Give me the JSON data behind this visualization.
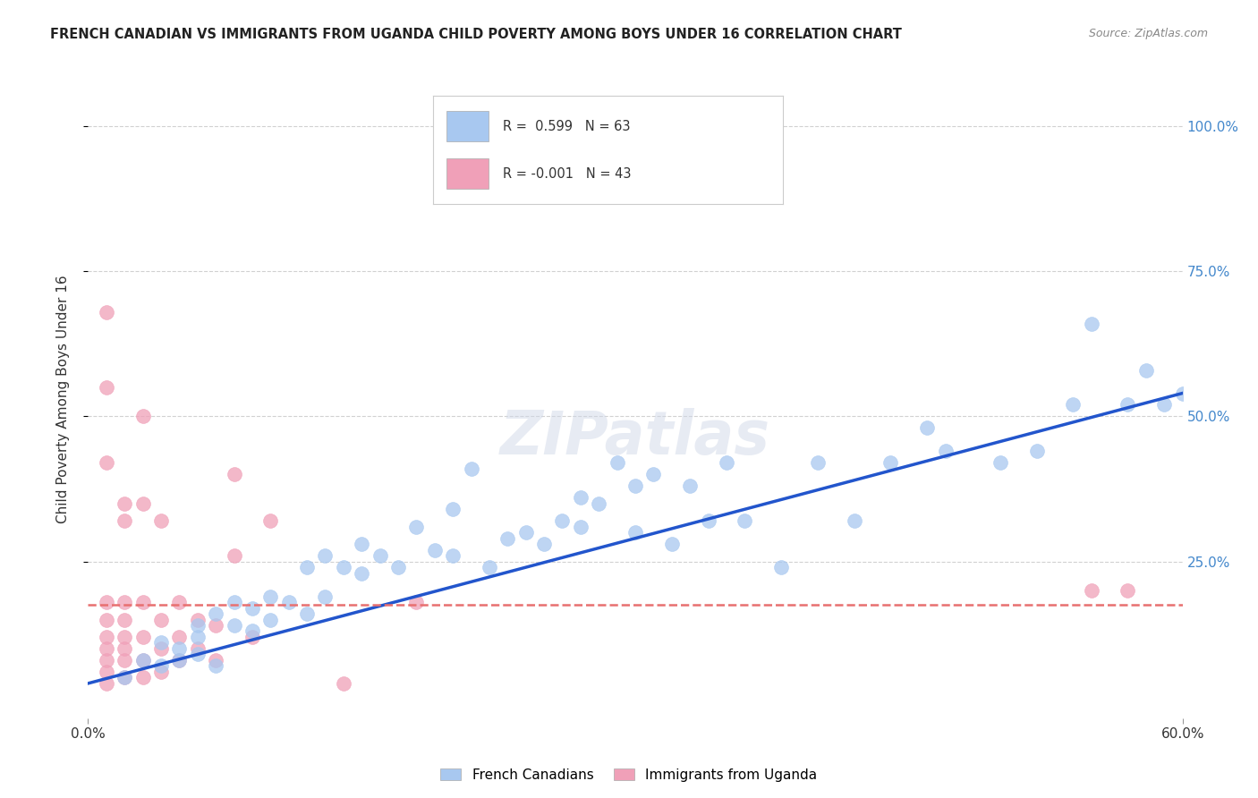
{
  "title": "FRENCH CANADIAN VS IMMIGRANTS FROM UGANDA CHILD POVERTY AMONG BOYS UNDER 16 CORRELATION CHART",
  "source": "Source: ZipAtlas.com",
  "ylabel": "Child Poverty Among Boys Under 16",
  "xlim": [
    0.0,
    0.6
  ],
  "ylim": [
    -0.02,
    1.08
  ],
  "R_blue": "0.599",
  "N_blue": "63",
  "R_pink": "-0.001",
  "N_pink": "43",
  "blue_color": "#A8C8F0",
  "pink_color": "#F0A0B8",
  "trend_blue_color": "#2255CC",
  "trend_pink_color": "#E87070",
  "legend_label_blue": "French Canadians",
  "legend_label_pink": "Immigrants from Uganda",
  "watermark": "ZIPatlas",
  "blue_x": [
    0.02,
    0.03,
    0.04,
    0.04,
    0.05,
    0.05,
    0.06,
    0.06,
    0.06,
    0.07,
    0.07,
    0.08,
    0.08,
    0.09,
    0.09,
    0.1,
    0.1,
    0.11,
    0.12,
    0.12,
    0.13,
    0.13,
    0.14,
    0.15,
    0.15,
    0.16,
    0.17,
    0.18,
    0.19,
    0.2,
    0.2,
    0.21,
    0.22,
    0.23,
    0.24,
    0.25,
    0.26,
    0.27,
    0.27,
    0.28,
    0.29,
    0.3,
    0.3,
    0.31,
    0.32,
    0.33,
    0.34,
    0.35,
    0.36,
    0.38,
    0.4,
    0.42,
    0.44,
    0.46,
    0.47,
    0.5,
    0.52,
    0.54,
    0.55,
    0.57,
    0.58,
    0.59,
    0.6
  ],
  "blue_y": [
    0.05,
    0.08,
    0.07,
    0.11,
    0.08,
    0.1,
    0.09,
    0.12,
    0.14,
    0.07,
    0.16,
    0.14,
    0.18,
    0.13,
    0.17,
    0.15,
    0.19,
    0.18,
    0.16,
    0.24,
    0.19,
    0.26,
    0.24,
    0.23,
    0.28,
    0.26,
    0.24,
    0.31,
    0.27,
    0.26,
    0.34,
    0.41,
    0.24,
    0.29,
    0.3,
    0.28,
    0.32,
    0.36,
    0.31,
    0.35,
    0.42,
    0.3,
    0.38,
    0.4,
    0.28,
    0.38,
    0.32,
    0.42,
    0.32,
    0.24,
    0.42,
    0.32,
    0.42,
    0.48,
    0.44,
    0.42,
    0.44,
    0.52,
    0.66,
    0.52,
    0.58,
    0.52,
    0.54
  ],
  "pink_x": [
    0.01,
    0.01,
    0.01,
    0.01,
    0.01,
    0.01,
    0.01,
    0.01,
    0.02,
    0.02,
    0.02,
    0.02,
    0.02,
    0.02,
    0.03,
    0.03,
    0.03,
    0.03,
    0.04,
    0.04,
    0.04,
    0.05,
    0.05,
    0.05,
    0.06,
    0.06,
    0.07,
    0.07,
    0.08,
    0.08,
    0.09,
    0.1,
    0.14,
    0.18,
    0.55,
    0.57,
    0.01,
    0.01,
    0.02,
    0.02,
    0.03,
    0.03,
    0.04
  ],
  "pink_y": [
    0.68,
    0.18,
    0.15,
    0.12,
    0.1,
    0.08,
    0.06,
    0.04,
    0.18,
    0.15,
    0.12,
    0.1,
    0.08,
    0.05,
    0.18,
    0.12,
    0.08,
    0.05,
    0.15,
    0.1,
    0.06,
    0.18,
    0.12,
    0.08,
    0.15,
    0.1,
    0.14,
    0.08,
    0.4,
    0.26,
    0.12,
    0.32,
    0.04,
    0.18,
    0.2,
    0.2,
    0.55,
    0.42,
    0.35,
    0.32,
    0.5,
    0.35,
    0.32
  ],
  "blue_trend_x": [
    0.0,
    0.6
  ],
  "blue_trend_y": [
    0.04,
    0.54
  ],
  "pink_trend_x": [
    0.0,
    0.6
  ],
  "pink_trend_y": [
    0.175,
    0.175
  ],
  "ytick_vals": [
    0.25,
    0.5,
    0.75,
    1.0
  ],
  "ytick_labels": [
    "25.0%",
    "50.0%",
    "75.0%",
    "100.0%"
  ],
  "xtick_vals": [
    0.0,
    0.6
  ],
  "xtick_labels": [
    "0.0%",
    "60.0%"
  ],
  "background_color": "#FFFFFF",
  "grid_color": "#CCCCCC",
  "title_fontsize": 10.5,
  "axis_label_fontsize": 11,
  "tick_fontsize": 11,
  "right_tick_color": "#4488CC"
}
